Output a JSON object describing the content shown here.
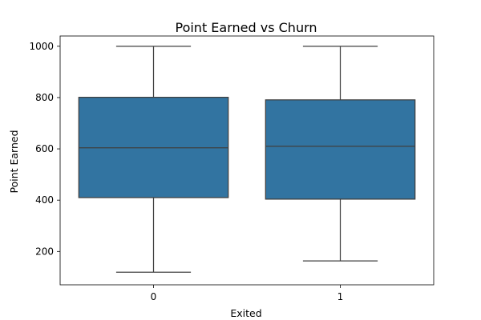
{
  "chart_data": {
    "type": "box",
    "title": "Point Earned vs Churn",
    "xlabel": "Exited",
    "ylabel": "Point Earned",
    "categories": [
      "0",
      "1"
    ],
    "boxes": [
      {
        "category": "0",
        "min": 119,
        "q1": 410,
        "median": 604,
        "q3": 801,
        "max": 1000
      },
      {
        "category": "1",
        "min": 163,
        "q1": 404,
        "median": 610,
        "q3": 791,
        "max": 1000
      }
    ],
    "ylim": [
      70,
      1040
    ],
    "yticks": [
      200,
      400,
      600,
      800,
      1000
    ],
    "box_color": "#3274a1",
    "line_color": "#3f3f3f",
    "grid": false
  }
}
